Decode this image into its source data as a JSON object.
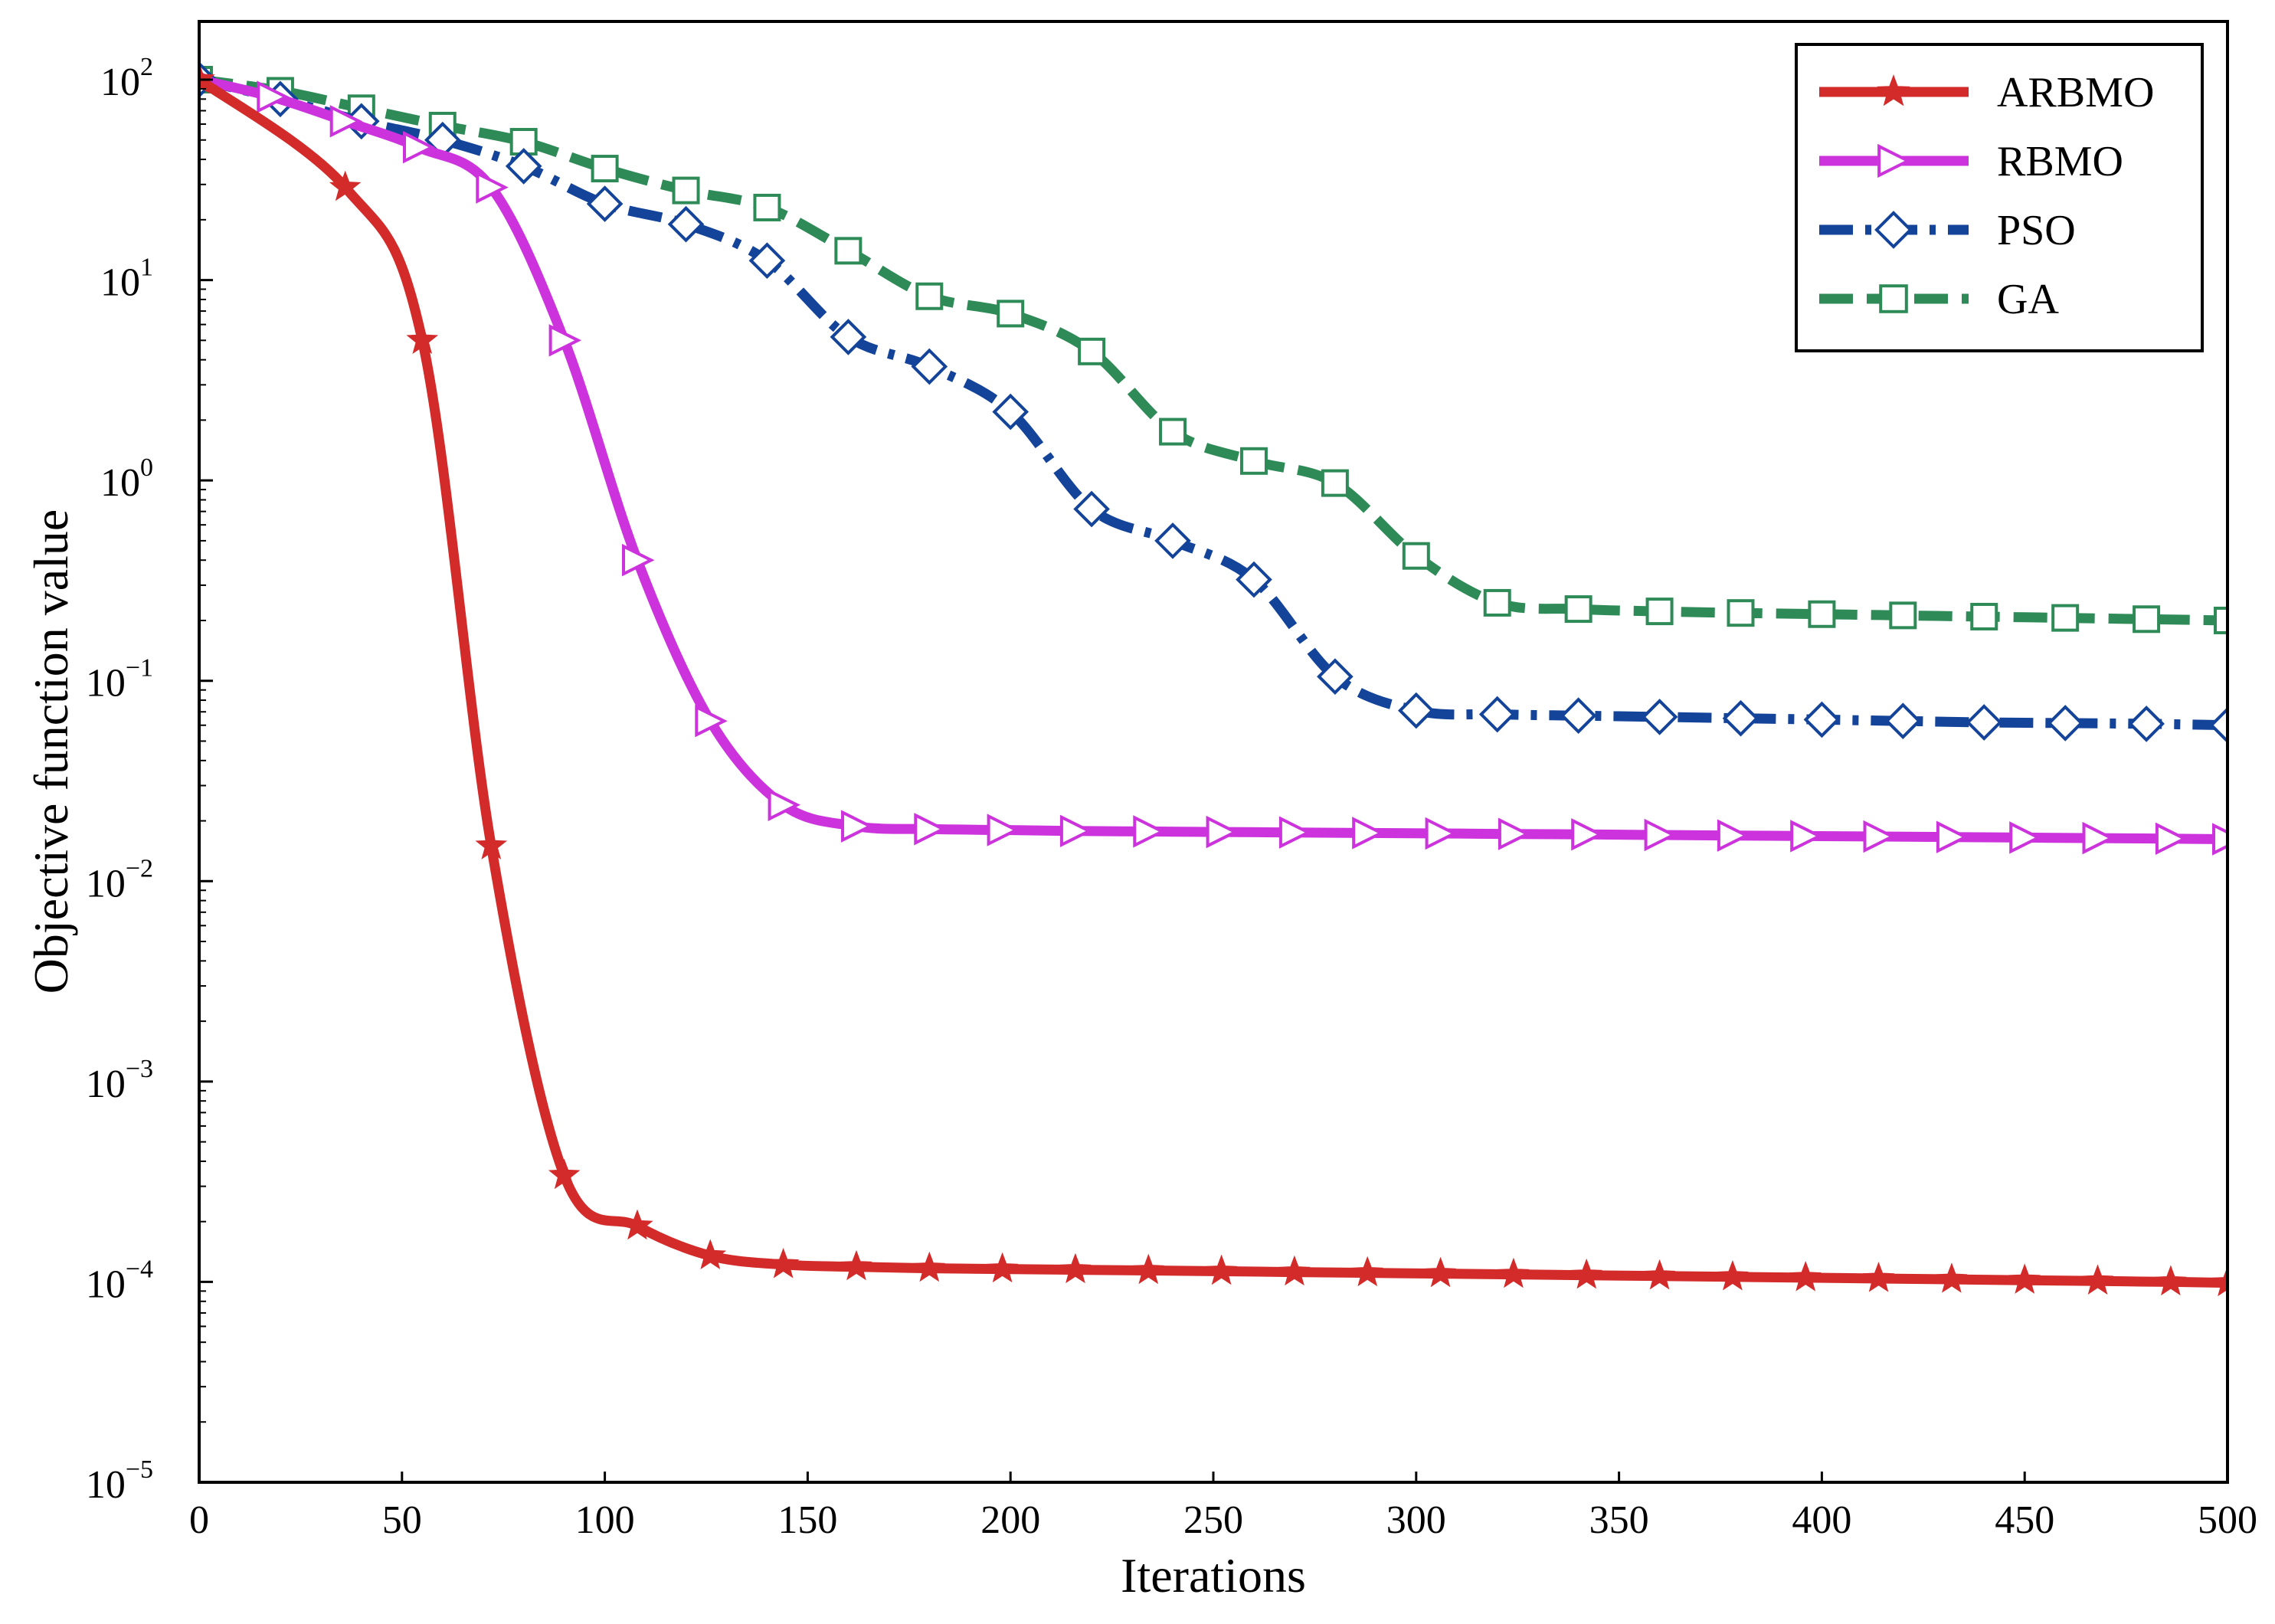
{
  "chart_data": {
    "type": "line",
    "title": "",
    "xlabel": "Iterations",
    "ylabel": "Objective function value",
    "xlim": [
      0,
      500
    ],
    "ylim": [
      1e-05,
      200
    ],
    "yscale": "log",
    "xticks": [
      "0",
      "50",
      "100",
      "150",
      "200",
      "250",
      "300",
      "350",
      "400",
      "450",
      "500"
    ],
    "yticks": [
      {
        "base": "10",
        "exp": "2"
      },
      {
        "base": "10",
        "exp": "1"
      },
      {
        "base": "10",
        "exp": "0"
      },
      {
        "base": "10",
        "exp": "−1"
      },
      {
        "base": "10",
        "exp": "−2"
      },
      {
        "base": "10",
        "exp": "−3"
      },
      {
        "base": "10",
        "exp": "−4"
      },
      {
        "base": "10",
        "exp": "−5"
      }
    ],
    "grid": false,
    "legend_position": "top-right",
    "series": [
      {
        "name": "ARBMO",
        "color": "#d32a2a",
        "line_style": "solid",
        "marker": "star",
        "x": [
          0,
          36,
          55,
          72,
          90,
          108,
          126,
          144,
          162,
          180,
          198,
          216,
          234,
          252,
          270,
          288,
          306,
          324,
          342,
          360,
          378,
          396,
          414,
          432,
          450,
          468,
          486,
          500
        ],
        "y": [
          100,
          29,
          5,
          0.015,
          0.00034,
          0.00019,
          0.000135,
          0.000122,
          0.000119,
          0.000117,
          0.000116,
          0.000115,
          0.000114,
          0.000113,
          0.000112,
          0.000111,
          0.00011,
          0.000109,
          0.000108,
          0.000107,
          0.000106,
          0.000105,
          0.000104,
          0.000103,
          0.000102,
          0.000101,
          0.0001,
          9.9e-05
        ]
      },
      {
        "name": "RBMO",
        "color": "#cc33dd",
        "line_style": "solid",
        "marker": "triangle-right",
        "x": [
          0,
          18,
          36,
          54,
          72,
          90,
          108,
          126,
          144,
          162,
          180,
          198,
          216,
          234,
          252,
          270,
          288,
          306,
          324,
          342,
          360,
          378,
          396,
          414,
          432,
          450,
          468,
          486,
          500
        ],
        "y": [
          100,
          82,
          62,
          46,
          29,
          5,
          0.4,
          0.063,
          0.024,
          0.0188,
          0.0182,
          0.018,
          0.0178,
          0.0177,
          0.0176,
          0.0175,
          0.0174,
          0.0173,
          0.0172,
          0.0171,
          0.017,
          0.0169,
          0.0168,
          0.0167,
          0.0166,
          0.0165,
          0.0164,
          0.0163,
          0.0162
        ]
      },
      {
        "name": "PSO",
        "color": "#13449a",
        "line_style": "dash-dot",
        "marker": "diamond",
        "x": [
          0,
          20,
          40,
          60,
          80,
          100,
          120,
          140,
          160,
          180,
          200,
          220,
          240,
          260,
          280,
          300,
          320,
          340,
          360,
          380,
          400,
          420,
          440,
          460,
          480,
          500
        ],
        "y": [
          100,
          80,
          62,
          50,
          37,
          24,
          19,
          12.5,
          5.2,
          3.7,
          2.2,
          0.72,
          0.5,
          0.32,
          0.105,
          0.071,
          0.068,
          0.067,
          0.066,
          0.065,
          0.064,
          0.063,
          0.062,
          0.0615,
          0.061,
          0.06
        ]
      },
      {
        "name": "GA",
        "color": "#2e8b57",
        "line_style": "dashed",
        "marker": "square",
        "x": [
          0,
          20,
          40,
          60,
          80,
          100,
          120,
          140,
          160,
          180,
          200,
          220,
          240,
          260,
          280,
          300,
          320,
          340,
          360,
          380,
          400,
          420,
          440,
          460,
          480,
          500
        ],
        "y": [
          100,
          88,
          72,
          59,
          49,
          36,
          28,
          23,
          14,
          8.3,
          6.8,
          4.4,
          1.75,
          1.25,
          0.97,
          0.42,
          0.245,
          0.228,
          0.222,
          0.218,
          0.215,
          0.212,
          0.209,
          0.206,
          0.203,
          0.2
        ]
      }
    ]
  }
}
